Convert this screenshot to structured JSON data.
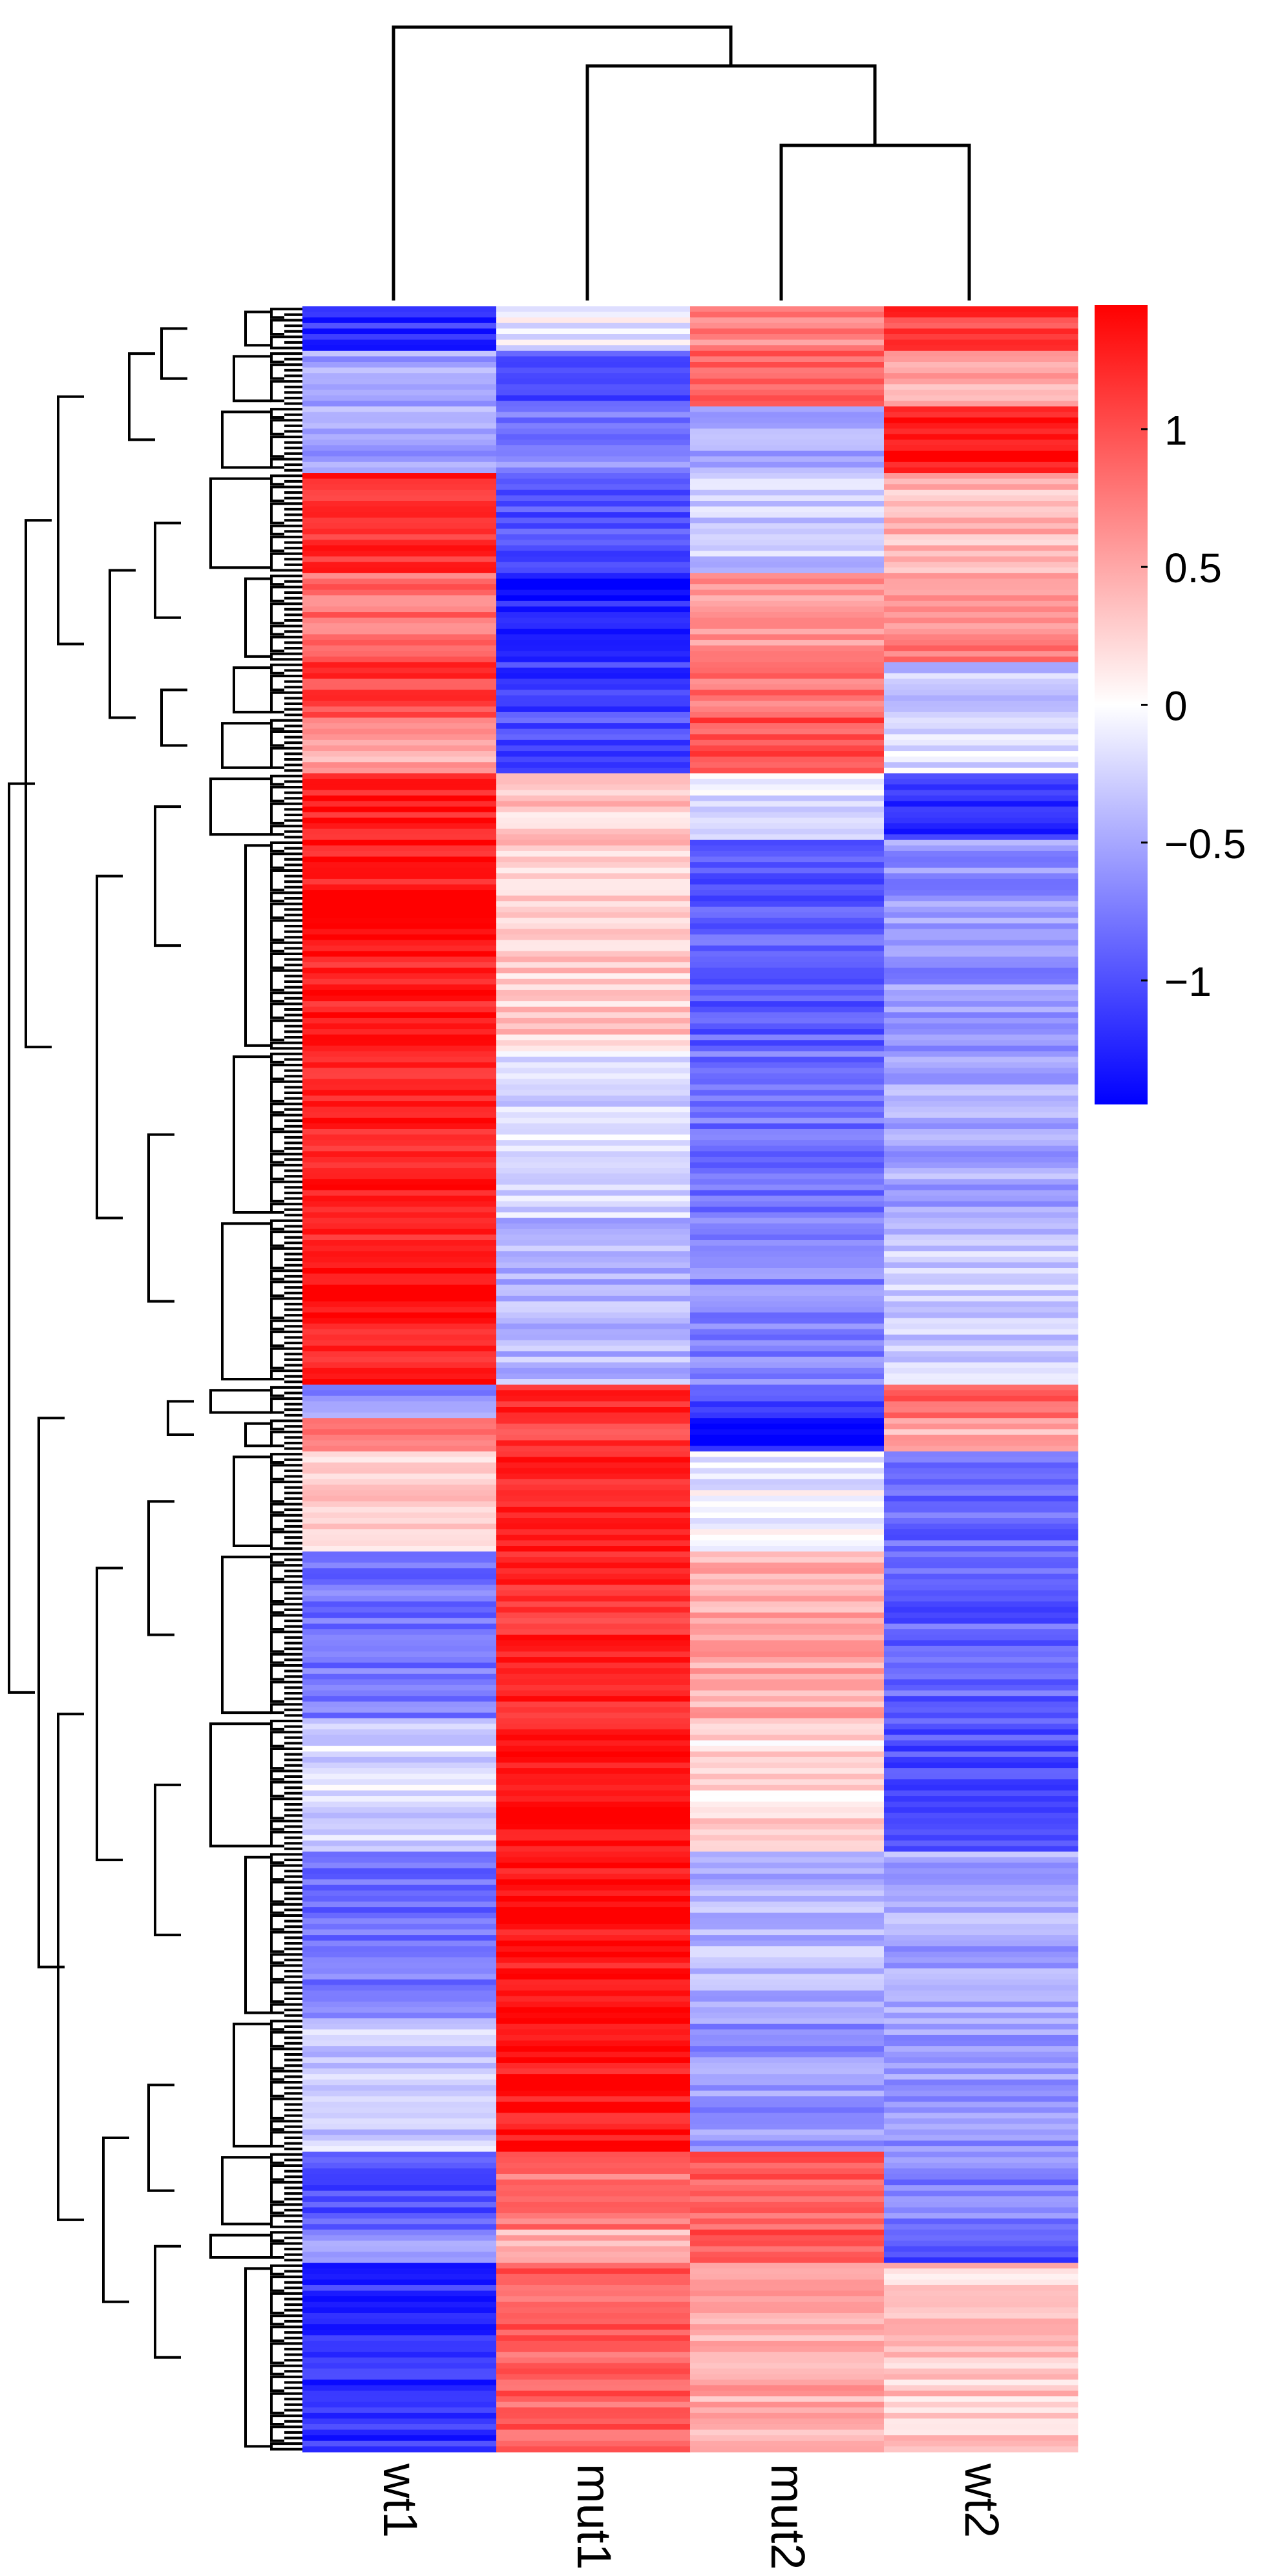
{
  "chart_data": {
    "type": "heatmap",
    "title": "",
    "columns": [
      "wt1",
      "mut1",
      "mut2",
      "wt2"
    ],
    "column_dendrogram": "wt1 separates first; mut1 joins (mut2, wt2)",
    "row_dendrogram": "hierarchical clustering of genes (rows)",
    "colorbar": {
      "min": -1.45,
      "max": 1.45,
      "ticks": [
        1,
        0.5,
        0,
        -0.5,
        -1
      ],
      "tick_labels": [
        "1",
        "0.5",
        "0",
        "−0.5",
        "−1"
      ],
      "colors": {
        "low": "#0000ff",
        "mid": "#ffffff",
        "high": "#ff0000"
      }
    },
    "row_blocks": [
      {
        "rows": 8,
        "values": [
          -1.2,
          -0.1,
          0.7,
          1.1
        ]
      },
      {
        "rows": 10,
        "values": [
          -0.5,
          -1.0,
          0.9,
          0.5
        ]
      },
      {
        "rows": 12,
        "values": [
          -0.5,
          -0.7,
          -0.5,
          1.3
        ]
      },
      {
        "rows": 18,
        "values": [
          1.2,
          -1.0,
          -0.3,
          0.4
        ]
      },
      {
        "rows": 16,
        "values": [
          0.8,
          -1.3,
          0.6,
          0.7
        ]
      },
      {
        "rows": 10,
        "values": [
          1.1,
          -1.1,
          0.8,
          -0.3
        ]
      },
      {
        "rows": 10,
        "values": [
          0.5,
          -1.0,
          1.0,
          -0.2
        ]
      },
      {
        "rows": 12,
        "values": [
          1.3,
          0.3,
          -0.2,
          -1.2
        ]
      },
      {
        "rows": 38,
        "values": [
          1.3,
          0.3,
          -0.9,
          -0.6
        ]
      },
      {
        "rows": 30,
        "values": [
          1.3,
          -0.2,
          -0.8,
          -0.5
        ]
      },
      {
        "rows": 30,
        "values": [
          1.3,
          -0.4,
          -0.7,
          -0.3
        ]
      },
      {
        "rows": 6,
        "values": [
          -0.6,
          1.2,
          -1.0,
          0.9
        ]
      },
      {
        "rows": 6,
        "values": [
          0.8,
          1.1,
          -1.3,
          0.5
        ]
      },
      {
        "rows": 18,
        "values": [
          0.3,
          1.2,
          -0.1,
          -0.9
        ]
      },
      {
        "rows": 30,
        "values": [
          -0.8,
          1.2,
          0.5,
          -0.9
        ]
      },
      {
        "rows": 24,
        "values": [
          -0.2,
          1.35,
          0.2,
          -1.0
        ]
      },
      {
        "rows": 30,
        "values": [
          -0.8,
          1.35,
          -0.4,
          -0.5
        ]
      },
      {
        "rows": 24,
        "values": [
          -0.3,
          1.35,
          -0.6,
          -0.6
        ]
      },
      {
        "rows": 14,
        "values": [
          -1.0,
          0.8,
          0.9,
          -0.7
        ]
      },
      {
        "rows": 6,
        "values": [
          -0.5,
          0.4,
          1.0,
          -1.0
        ]
      },
      {
        "rows": 34,
        "values": [
          -1.2,
          0.9,
          0.5,
          0.3
        ]
      }
    ]
  }
}
